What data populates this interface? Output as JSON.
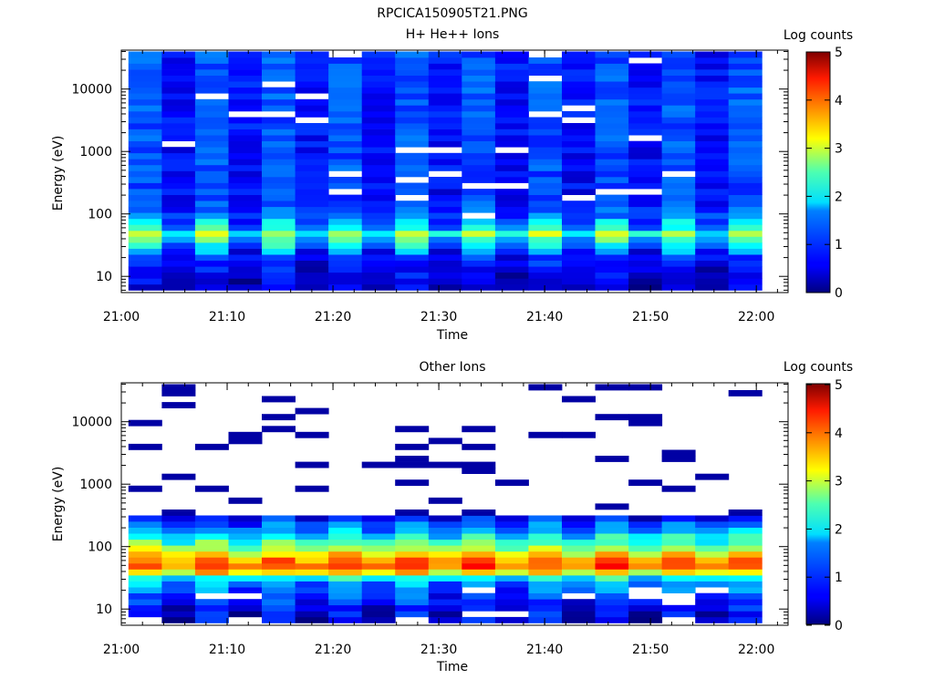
{
  "figure": {
    "title": "RPCICA150905T21.PNG"
  },
  "chart_data": [
    {
      "type": "heatmap",
      "title": "H+ He++ Ions",
      "xlabel": "Time",
      "ylabel": "Energy (eV)",
      "y_scale": "log",
      "xlim": [
        "21:00",
        "22:03"
      ],
      "ylim": [
        5.5,
        42000
      ],
      "x_ticks": [
        "21:00",
        "21:10",
        "21:20",
        "21:30",
        "21:40",
        "21:50",
        "22:00"
      ],
      "y_ticks": [
        "10",
        "100",
        "1000",
        "10000"
      ],
      "colorbar": {
        "label": "Log counts",
        "range": [
          0,
          5
        ],
        "ticks": [
          "0",
          "1",
          "2",
          "3",
          "4",
          "5"
        ],
        "colormap": "jet"
      },
      "time_columns": [
        "21:02:15",
        "21:05:24",
        "21:08:33",
        "21:11:42",
        "21:14:51",
        "21:18:00",
        "21:21:09",
        "21:24:18",
        "21:27:27",
        "21:30:36",
        "21:33:45",
        "21:36:54",
        "21:40:03",
        "21:43:12",
        "21:46:21",
        "21:49:30",
        "21:52:39",
        "21:55:48",
        "21:58:57"
      ],
      "energy_profile": {
        "energy_eV": [
          6,
          10,
          15,
          22,
          30,
          40,
          50,
          60,
          75,
          100,
          200,
          500,
          1000,
          5000,
          10000,
          40000
        ],
        "log_counts": [
          0.35,
          0.5,
          0.6,
          0.85,
          1.5,
          2.0,
          2.5,
          1.7,
          1.4,
          1.0,
          0.8,
          0.85,
          0.85,
          0.9,
          0.9,
          0.9
        ]
      },
      "notes": "Peak counts (~3, yellow) near 40-60 eV in alternating columns; blue background ~0.5-1.2 log counts across 100 eV-40 keV with white gaps (no counts)."
    },
    {
      "type": "heatmap",
      "title": "Other Ions",
      "xlabel": "Time",
      "ylabel": "Energy (eV)",
      "y_scale": "log",
      "xlim": [
        "21:00",
        "22:03"
      ],
      "ylim": [
        5.5,
        42000
      ],
      "x_ticks": [
        "21:00",
        "21:10",
        "21:20",
        "21:30",
        "21:40",
        "21:50",
        "22:00"
      ],
      "y_ticks": [
        "10",
        "100",
        "1000",
        "10000"
      ],
      "colorbar": {
        "label": "Log counts",
        "range": [
          0,
          5
        ],
        "ticks": [
          "0",
          "1",
          "2",
          "3",
          "4",
          "5"
        ],
        "colormap": "jet"
      },
      "time_columns": [
        "21:02:15",
        "21:05:24",
        "21:08:33",
        "21:11:42",
        "21:14:51",
        "21:18:00",
        "21:21:09",
        "21:24:18",
        "21:27:27",
        "21:30:36",
        "21:33:45",
        "21:36:54",
        "21:40:03",
        "21:43:12",
        "21:46:21",
        "21:49:30",
        "21:52:39",
        "21:55:48",
        "21:58:57"
      ],
      "energy_profile": {
        "energy_eV": [
          6,
          10,
          15,
          22,
          30,
          40,
          50,
          60,
          75,
          100,
          150,
          200,
          300
        ],
        "log_counts": [
          0.4,
          0.6,
          0.9,
          1.2,
          1.6,
          3.4,
          4.0,
          3.8,
          3.2,
          2.5,
          1.8,
          1.2,
          0.6
        ]
      },
      "notes": "Intense band (log counts ~3.5-4.7) at 40-70 eV; sparse single-count lines (~0.2) scattered between 300 eV and 30 keV; no counts elsewhere."
    }
  ]
}
